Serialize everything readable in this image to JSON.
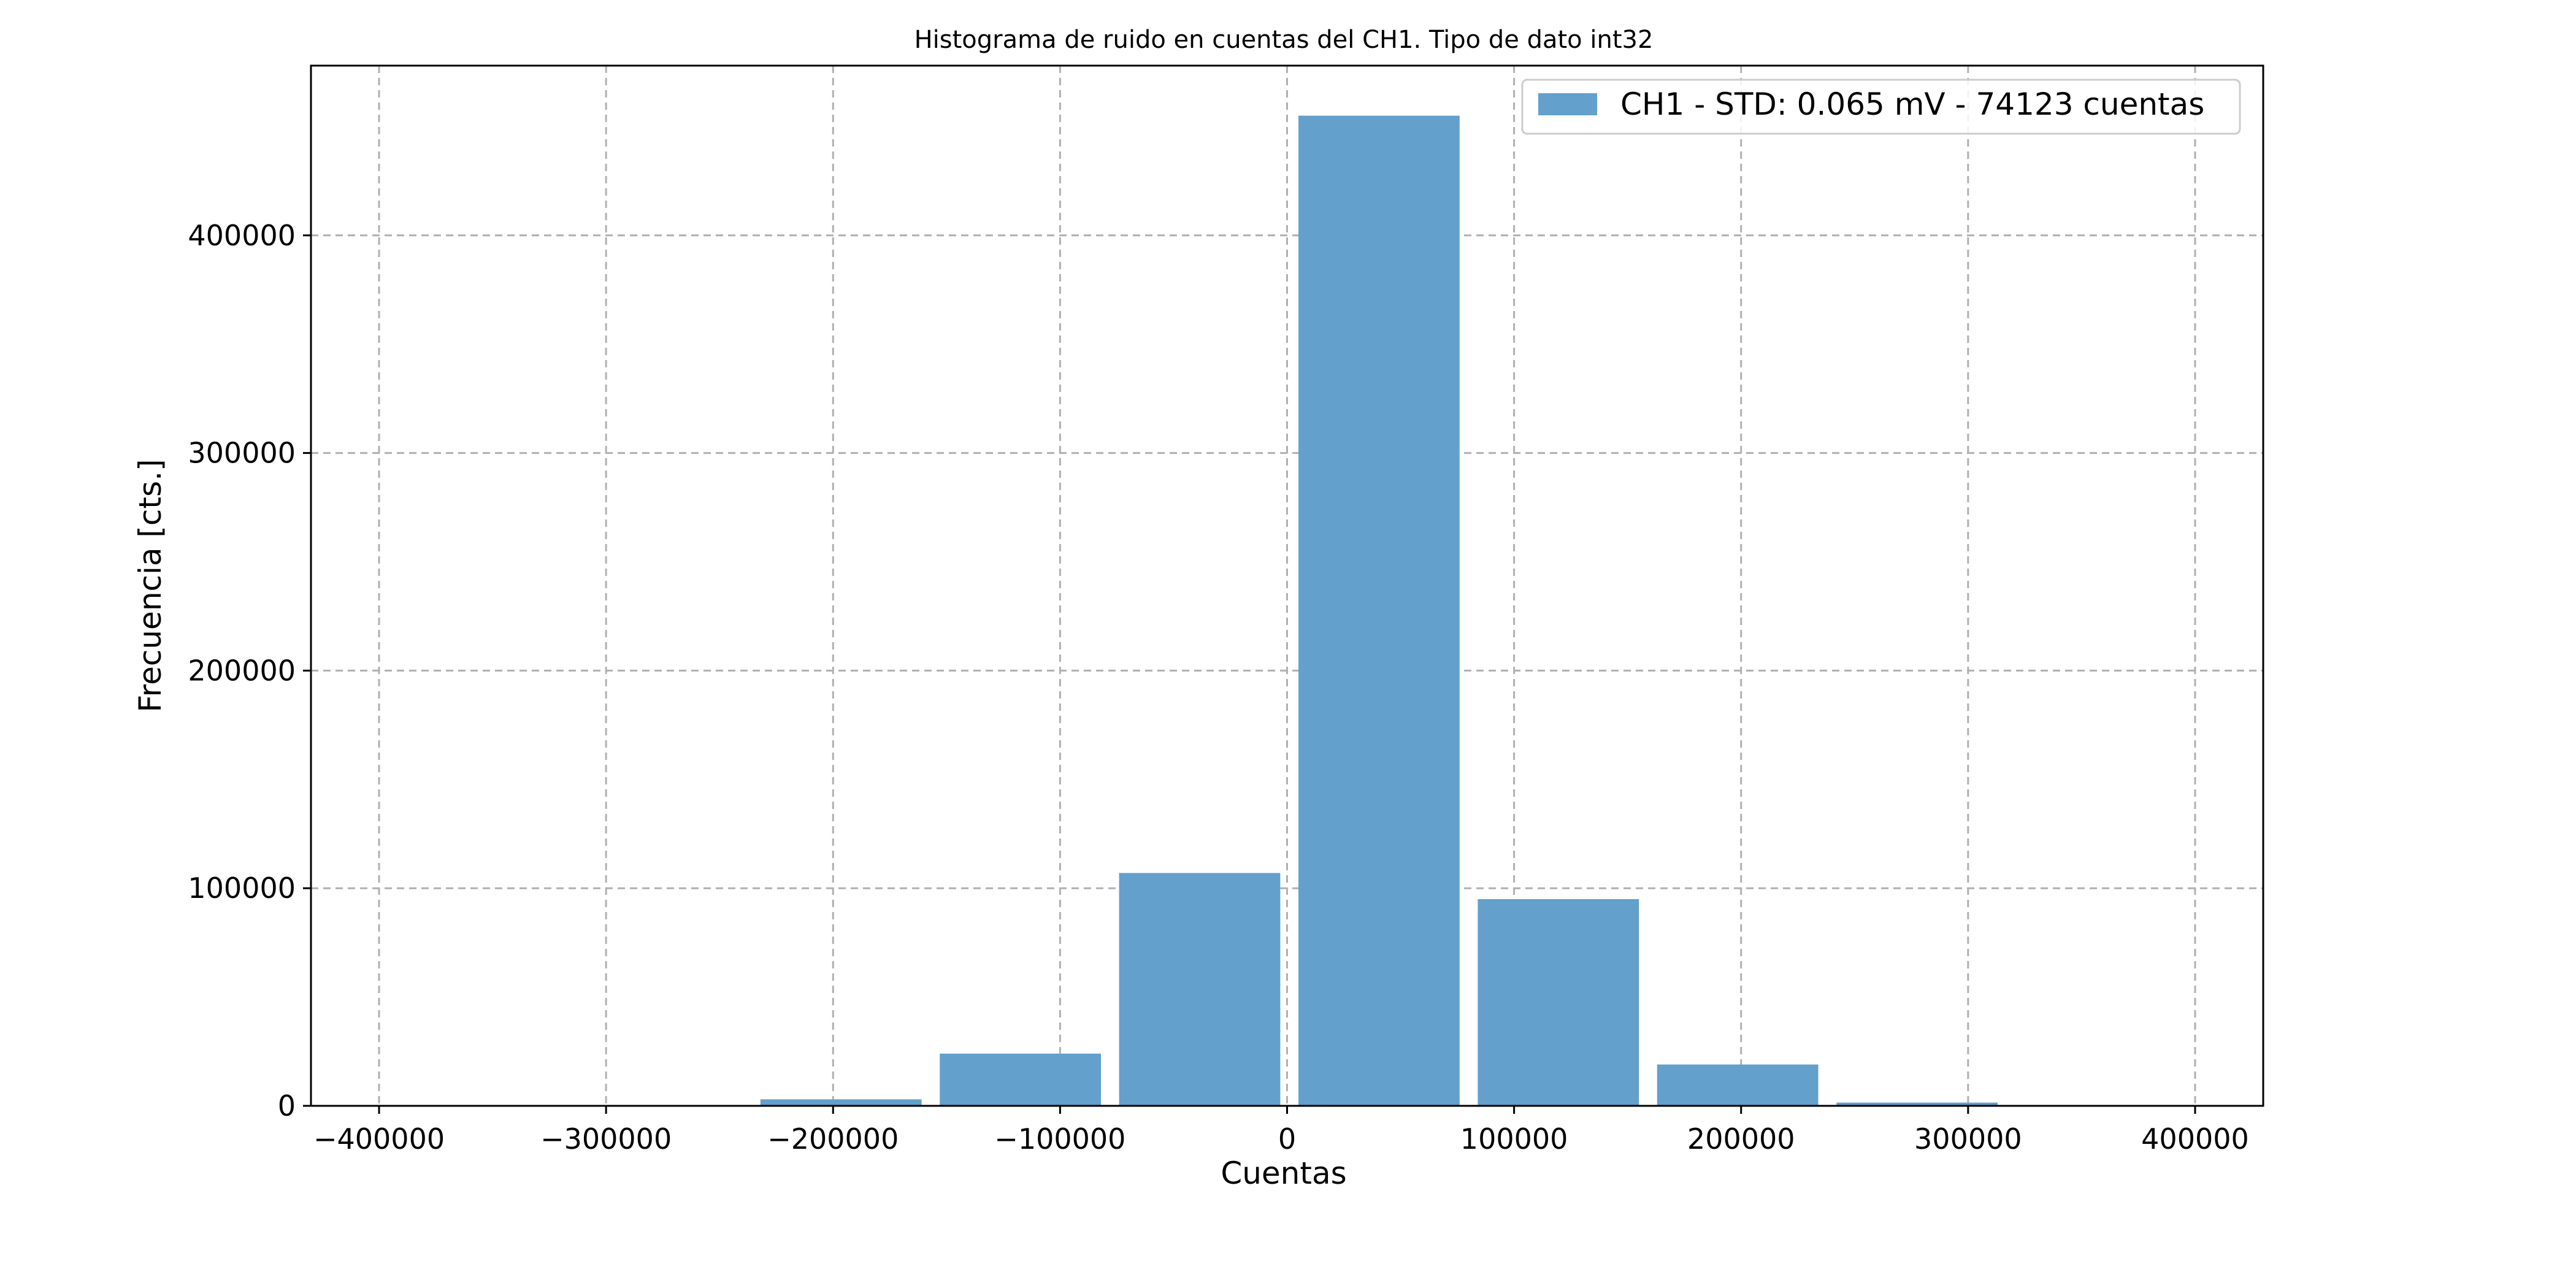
{
  "chart_data": {
    "type": "bar",
    "title": "Histograma de ruido en cuentas del CH1. Tipo de dato int32",
    "xlabel": "Cuentas",
    "ylabel": "Frecuencia [cts.]",
    "xlim": [
      -430000,
      430000
    ],
    "ylim": [
      0,
      478000
    ],
    "xticks": [
      -400000,
      -300000,
      -200000,
      -100000,
      0,
      100000,
      200000,
      300000,
      400000
    ],
    "xtick_labels": [
      "−400000",
      "−300000",
      "−200000",
      "−100000",
      "0",
      "100000",
      "200000",
      "300000",
      "400000"
    ],
    "yticks": [
      0,
      100000,
      200000,
      300000,
      400000
    ],
    "ytick_labels": [
      "0",
      "100000",
      "200000",
      "300000",
      "400000"
    ],
    "grid": true,
    "legend_position": "top-right",
    "series": [
      {
        "name": "CH1 - STD:  0.065 mV -  74123 cuentas",
        "color": "#63a0cb",
        "bins": [
          {
            "x0": -232000,
            "x1": -161000,
            "value": 3000
          },
          {
            "x0": -153000,
            "x1": -82000,
            "value": 24000
          },
          {
            "x0": -74000,
            "x1": -3000,
            "value": 107000
          },
          {
            "x0": 5000,
            "x1": 76000,
            "value": 455000
          },
          {
            "x0": 84000,
            "x1": 155000,
            "value": 95000
          },
          {
            "x0": 163000,
            "x1": 234000,
            "value": 19000
          },
          {
            "x0": 242000,
            "x1": 313000,
            "value": 1500
          }
        ]
      }
    ]
  }
}
